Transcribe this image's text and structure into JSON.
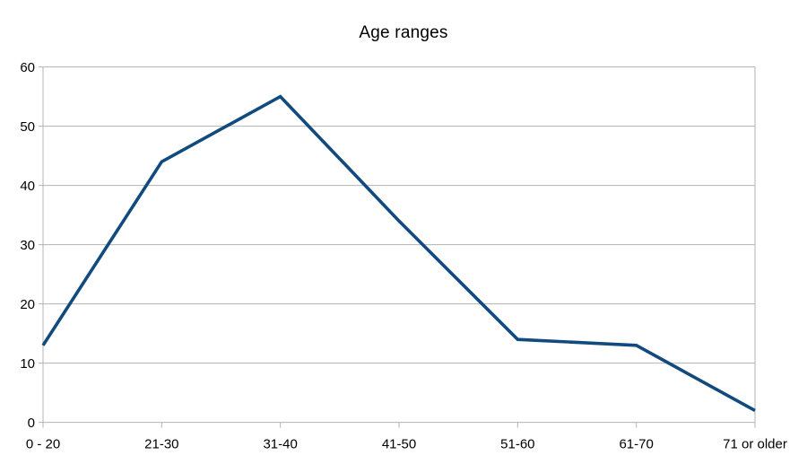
{
  "chart_data": {
    "type": "line",
    "title": "Age ranges",
    "categories": [
      "0 - 20",
      "21-30",
      "31-40",
      "41-50",
      "51-60",
      "61-70",
      "71 or older"
    ],
    "series": [
      {
        "name": "Age ranges",
        "values": [
          13,
          44,
          55,
          34,
          14,
          13,
          2
        ],
        "color": "#114b7e"
      }
    ],
    "xlabel": "",
    "ylabel": "",
    "ylim": [
      0,
      60
    ],
    "y_tick_step": 10,
    "y_tick_labels": [
      "0",
      "10",
      "20",
      "30",
      "40",
      "50",
      "60"
    ],
    "grid": "horizontal",
    "legend_position": "none",
    "colors": {
      "axis_and_grid": "#b3b3b3",
      "text": "#000000",
      "background": "#ffffff"
    }
  }
}
